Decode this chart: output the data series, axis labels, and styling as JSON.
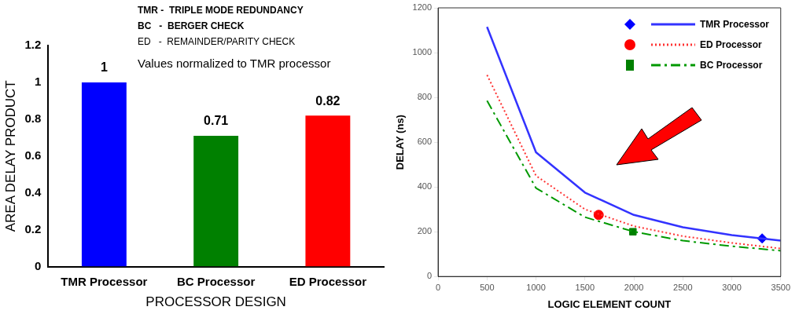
{
  "chart_data": [
    {
      "type": "bar",
      "categories": [
        "TMR Processor",
        "BC Processor",
        "ED Processor"
      ],
      "values": [
        1,
        0.71,
        0.82
      ],
      "colors": [
        "#0000ff",
        "#008000",
        "#ff0000"
      ],
      "xlabel": "PROCESSOR DESIGN",
      "ylabel": "AREA DELAY PRODUCT",
      "ylim": [
        0,
        1.2
      ],
      "yticks": [
        0,
        0.2,
        0.4,
        0.6,
        0.8,
        1,
        1.2
      ],
      "data_labels": true,
      "grid": false,
      "legend": false,
      "annotations": [
        "TMR -  TRIPLE MODE REDUNDANCY",
        "BC   -  BERGER CHECK",
        "ED   -  REMAINDER/PARITY CHECK",
        "Values normalized to TMR processor"
      ]
    },
    {
      "type": "line",
      "x": [
        500,
        1000,
        1500,
        2000,
        2500,
        3000,
        3500
      ],
      "xlabel": "LOGIC ELEMENT COUNT",
      "ylabel": "DELAY (ns)",
      "xlim": [
        0,
        3500
      ],
      "xticks": [
        0,
        500,
        1000,
        1500,
        2000,
        2500,
        3000,
        3500
      ],
      "ylim": [
        0,
        1200
      ],
      "yticks": [
        0,
        200,
        400,
        600,
        800,
        1000,
        1200
      ],
      "grid": false,
      "legend": "top right",
      "series": [
        {
          "name": "TMR Processor",
          "color": "#3333ff",
          "line_style": "solid",
          "values": [
            1115,
            555,
            375,
            275,
            220,
            185,
            160
          ]
        },
        {
          "name": "ED Processor",
          "color": "#ff3333",
          "line_style": "dotted",
          "values": [
            900,
            450,
            300,
            225,
            180,
            150,
            125
          ]
        },
        {
          "name": "BC Processor",
          "color": "#009900",
          "line_style": "dashed",
          "values": [
            785,
            395,
            265,
            200,
            160,
            135,
            115
          ]
        },
        {
          "type": "scatter",
          "marker": "diamond",
          "color": "#0000ff",
          "x": [
            3310
          ],
          "values": [
            170
          ]
        },
        {
          "type": "scatter",
          "marker": "circle",
          "color": "#ff0000",
          "x": [
            1640
          ],
          "values": [
            275
          ]
        },
        {
          "type": "scatter",
          "marker": "square",
          "color": "#008000",
          "x": [
            1990
          ],
          "values": [
            200
          ]
        }
      ]
    }
  ]
}
